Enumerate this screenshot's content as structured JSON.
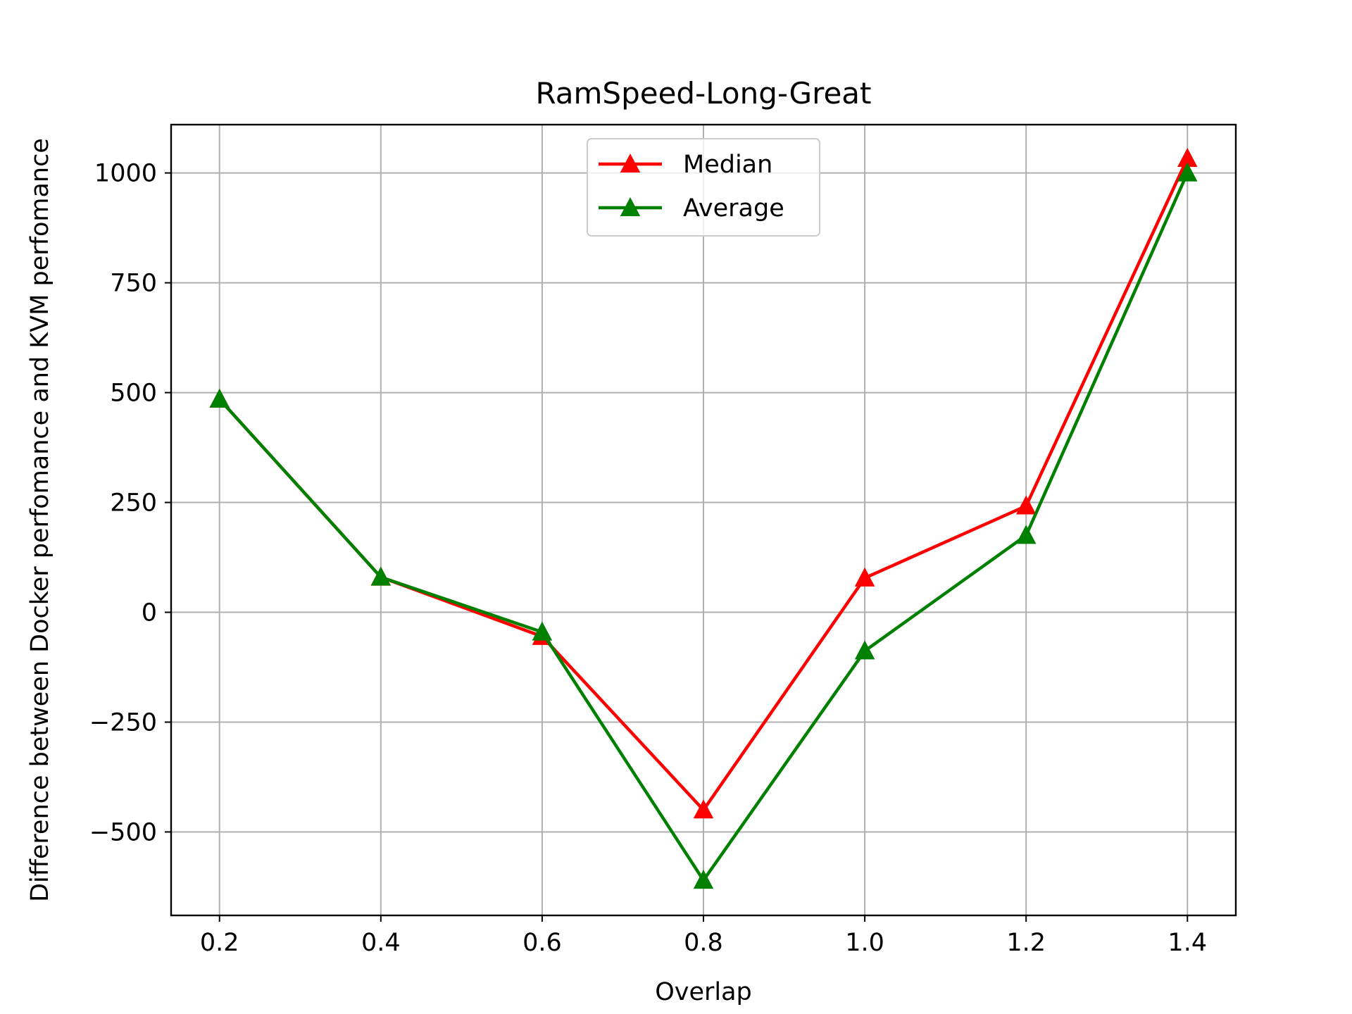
{
  "chart_data": {
    "type": "line",
    "title": "RamSpeed-Long-Great",
    "xlabel": "Overlap",
    "ylabel": "Difference between Docker perfomance and KVM perfomance",
    "x": [
      0.2,
      0.4,
      0.6,
      0.8,
      1.0,
      1.2,
      1.4
    ],
    "xticks": [
      "0.2",
      "0.4",
      "0.6",
      "0.8",
      "1.0",
      "1.2",
      "1.4"
    ],
    "yticks": [
      {
        "value": -500,
        "label": "−500"
      },
      {
        "value": -250,
        "label": "−250"
      },
      {
        "value": 0,
        "label": "0"
      },
      {
        "value": 250,
        "label": "250"
      },
      {
        "value": 500,
        "label": "500"
      },
      {
        "value": 750,
        "label": "750"
      },
      {
        "value": 1000,
        "label": "1000"
      }
    ],
    "xlim": [
      0.14,
      1.46
    ],
    "ylim": [
      -690,
      1110
    ],
    "grid": true,
    "legend_position": "top-center",
    "series": [
      {
        "name": "Median",
        "color": "#ff0000",
        "marker": "triangle-up",
        "values": [
          485,
          80,
          -55,
          -450,
          78,
          242,
          1033
        ]
      },
      {
        "name": "Average",
        "color": "#008000",
        "marker": "triangle-up",
        "values": [
          485,
          80,
          -45,
          -610,
          -88,
          175,
          1000
        ]
      }
    ]
  }
}
